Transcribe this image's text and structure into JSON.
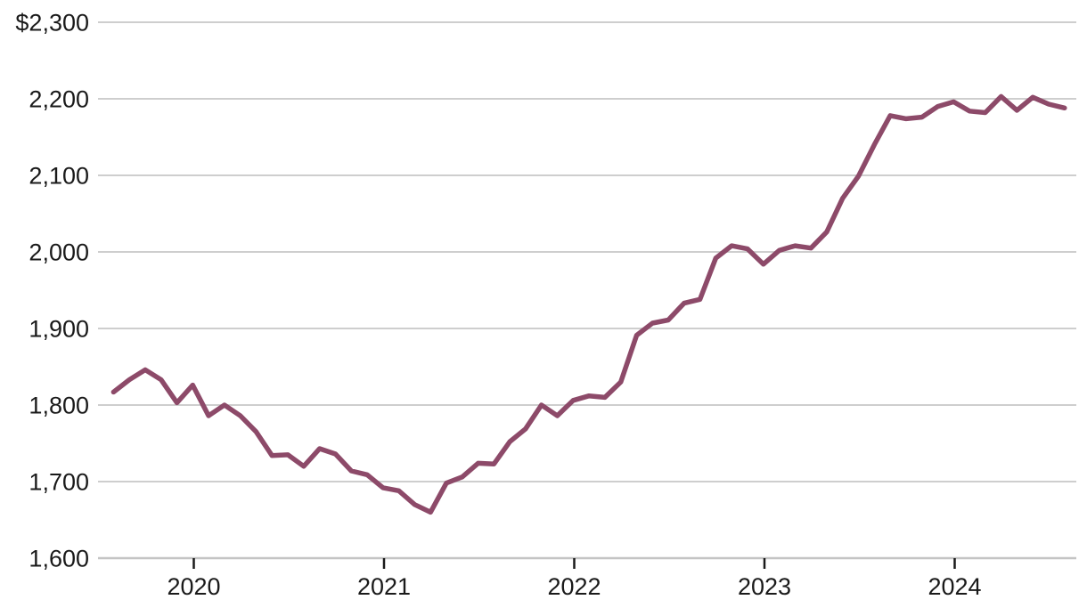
{
  "chart_data": {
    "type": "line",
    "title": "",
    "x": [
      "2019-08",
      "2019-09",
      "2019-10",
      "2019-11",
      "2019-12",
      "2020-01",
      "2020-02",
      "2020-03",
      "2020-04",
      "2020-05",
      "2020-06",
      "2020-07",
      "2020-08",
      "2020-09",
      "2020-10",
      "2020-11",
      "2020-12",
      "2021-01",
      "2021-02",
      "2021-03",
      "2021-04",
      "2021-05",
      "2021-06",
      "2021-07",
      "2021-08",
      "2021-09",
      "2021-10",
      "2021-11",
      "2021-12",
      "2022-01",
      "2022-02",
      "2022-03",
      "2022-04",
      "2022-05",
      "2022-06",
      "2022-07",
      "2022-08",
      "2022-09",
      "2022-10",
      "2022-11",
      "2022-12",
      "2023-01",
      "2023-02",
      "2023-03",
      "2023-04",
      "2023-05",
      "2023-06",
      "2023-07",
      "2023-08",
      "2023-09",
      "2023-10",
      "2023-11",
      "2023-12",
      "2024-01",
      "2024-02",
      "2024-03",
      "2024-04",
      "2024-05",
      "2024-06",
      "2024-07",
      "2024-08"
    ],
    "values": [
      1817,
      1833,
      1846,
      1833,
      1803,
      1826,
      1786,
      1800,
      1786,
      1765,
      1734,
      1735,
      1720,
      1743,
      1736,
      1714,
      1709,
      1692,
      1688,
      1670,
      1660,
      1698,
      1706,
      1724,
      1723,
      1752,
      1769,
      1800,
      1786,
      1806,
      1812,
      1810,
      1830,
      1891,
      1907,
      1911,
      1933,
      1938,
      1992,
      2008,
      2004,
      1984,
      2002,
      2008,
      2005,
      2026,
      2070,
      2099,
      2140,
      2178,
      2174,
      2176,
      2190,
      2196,
      2184,
      2182,
      2203,
      2185,
      2202,
      2193,
      2188
    ],
    "unit_prefix": "$",
    "xlabel": "",
    "ylabel": "",
    "ylim": [
      1600,
      2300
    ],
    "y_tick_values": [
      2300,
      2200,
      2100,
      2000,
      1900,
      1800,
      1700,
      1600
    ],
    "y_tick_labels": [
      "$2,300",
      "2,200",
      "2,100",
      "2,000",
      "1,900",
      "1,800",
      "1,700",
      "1,600"
    ],
    "x_tick_labels": [
      "2020",
      "2021",
      "2022",
      "2023",
      "2024"
    ],
    "grid": "horizontal",
    "legend": "none",
    "colors": {
      "line": "#8d4a69",
      "gridline": "#cecece",
      "axis": "#c4c4c4",
      "tick": "#1a1a1a",
      "text": "#1a1a1a",
      "background": "#ffffff"
    }
  }
}
